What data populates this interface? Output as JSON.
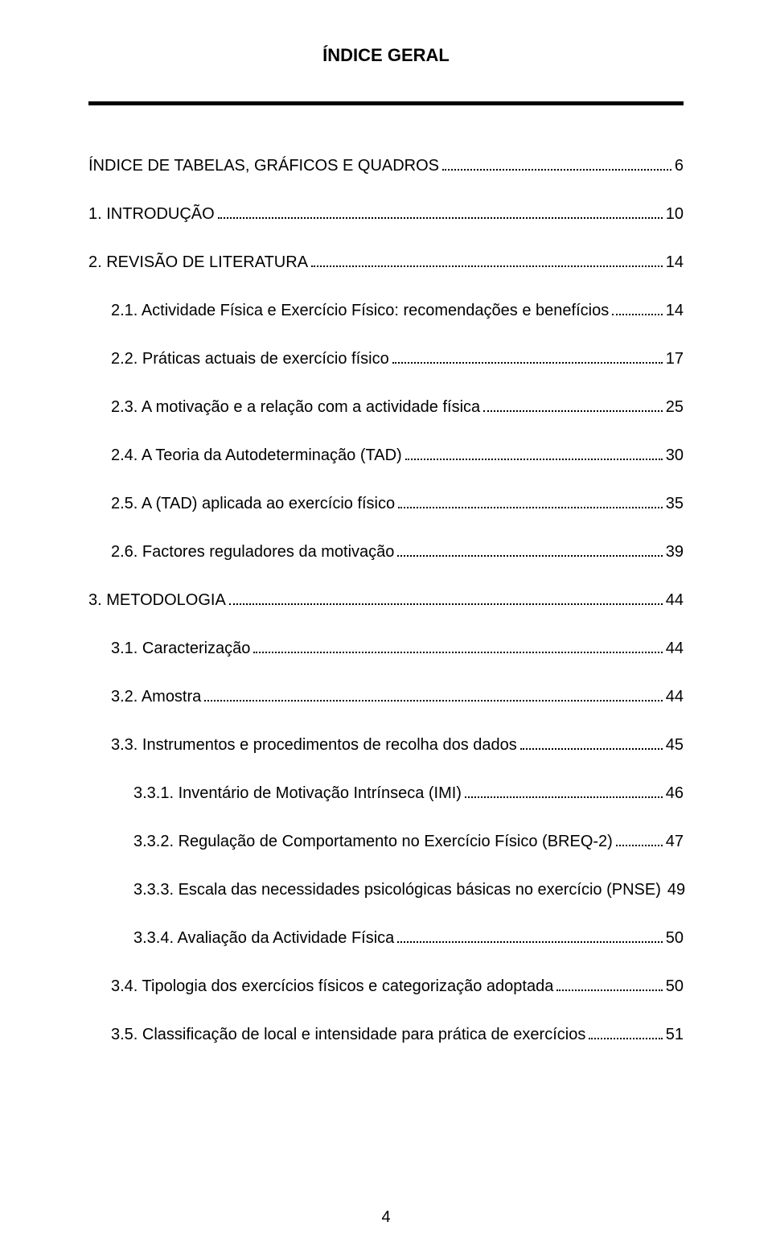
{
  "title": "ÍNDICE GERAL",
  "page_number": "4",
  "entries": [
    {
      "label": "ÍNDICE DE TABELAS, GRÁFICOS E QUADROS",
      "page": "6",
      "indent": 0
    },
    {
      "label": "1. INTRODUÇÃO",
      "page": "10",
      "indent": 0
    },
    {
      "label": "2. REVISÃO DE LITERATURA",
      "page": "14",
      "indent": 0
    },
    {
      "label": "2.1. Actividade Física e Exercício Físico: recomendações e benefícios",
      "page": "14",
      "indent": 1
    },
    {
      "label": "2.2. Práticas actuais de exercício físico",
      "page": "17",
      "indent": 1
    },
    {
      "label": "2.3. A motivação e a relação com a actividade física",
      "page": "25",
      "indent": 1
    },
    {
      "label": "2.4. A Teoria da Autodeterminação (TAD)",
      "page": "30",
      "indent": 1
    },
    {
      "label": "2.5. A (TAD) aplicada ao exercício físico",
      "page": "35",
      "indent": 1
    },
    {
      "label": "2.6. Factores reguladores da motivação",
      "page": "39",
      "indent": 1
    },
    {
      "label": "3. METODOLOGIA",
      "page": "44",
      "indent": 0
    },
    {
      "label": "3.1. Caracterização",
      "page": "44",
      "indent": 1
    },
    {
      "label": "3.2. Amostra",
      "page": "44",
      "indent": 1
    },
    {
      "label": "3.3. Instrumentos e procedimentos de recolha dos dados",
      "page": "45",
      "indent": 1
    },
    {
      "label": "3.3.1. Inventário de Motivação Intrínseca (IMI)",
      "page": "46",
      "indent": 2
    },
    {
      "label": "3.3.2. Regulação de Comportamento no Exercício Físico (BREQ-2)",
      "page": "47",
      "indent": 2
    },
    {
      "label": "3.3.3. Escala das necessidades psicológicas básicas no exercício (PNSE)",
      "page": "49",
      "indent": 2
    },
    {
      "label": "3.3.4. Avaliação da Actividade Física",
      "page": "50",
      "indent": 2
    },
    {
      "label": "3.4. Tipologia dos exercícios físicos e categorização adoptada",
      "page": "50",
      "indent": 1
    },
    {
      "label": "3.5. Classificação de local e intensidade para prática de exercícios",
      "page": "51",
      "indent": 1
    }
  ]
}
